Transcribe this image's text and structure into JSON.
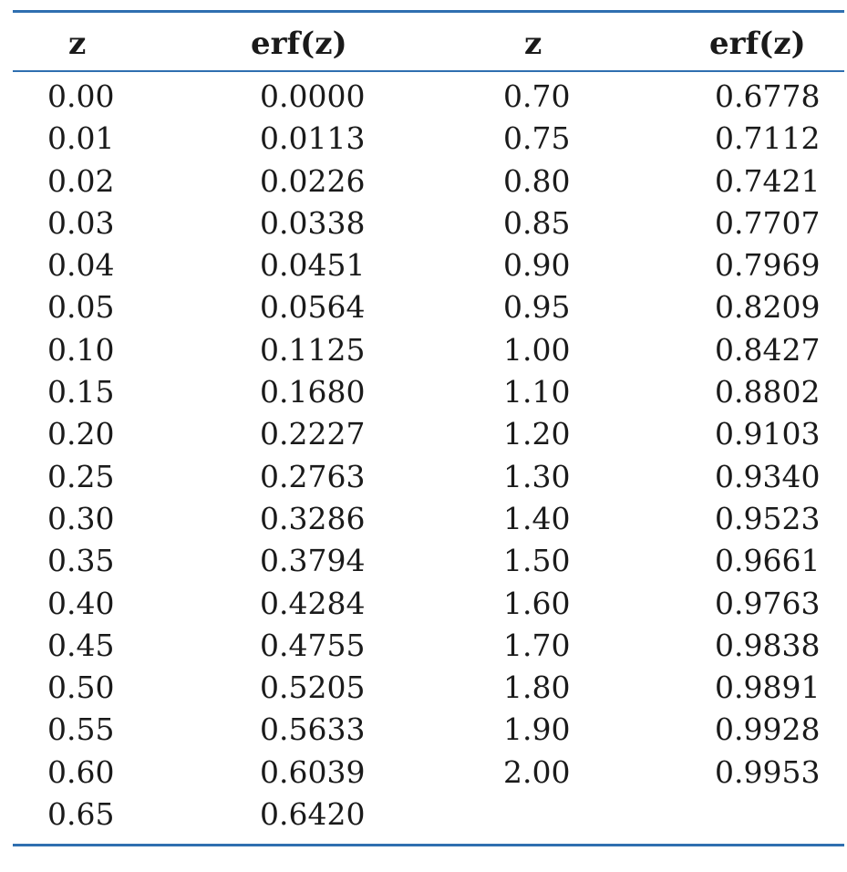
{
  "table": {
    "headers": [
      "z",
      "erf(z)",
      "z",
      "erf(z)"
    ],
    "left_rows": [
      {
        "z": "0.00",
        "erf": "0.0000"
      },
      {
        "z": "0.01",
        "erf": "0.0113"
      },
      {
        "z": "0.02",
        "erf": "0.0226"
      },
      {
        "z": "0.03",
        "erf": "0.0338"
      },
      {
        "z": "0.04",
        "erf": "0.0451"
      },
      {
        "z": "0.05",
        "erf": "0.0564"
      },
      {
        "z": "0.10",
        "erf": "0.1125"
      },
      {
        "z": "0.15",
        "erf": "0.1680"
      },
      {
        "z": "0.20",
        "erf": "0.2227"
      },
      {
        "z": "0.25",
        "erf": "0.2763"
      },
      {
        "z": "0.30",
        "erf": "0.3286"
      },
      {
        "z": "0.35",
        "erf": "0.3794"
      },
      {
        "z": "0.40",
        "erf": "0.4284"
      },
      {
        "z": "0.45",
        "erf": "0.4755"
      },
      {
        "z": "0.50",
        "erf": "0.5205"
      },
      {
        "z": "0.55",
        "erf": "0.5633"
      },
      {
        "z": "0.60",
        "erf": "0.6039"
      },
      {
        "z": "0.65",
        "erf": "0.6420"
      }
    ],
    "right_rows": [
      {
        "z": "0.70",
        "erf": "0.6778"
      },
      {
        "z": "0.75",
        "erf": "0.7112"
      },
      {
        "z": "0.80",
        "erf": "0.7421"
      },
      {
        "z": "0.85",
        "erf": "0.7707"
      },
      {
        "z": "0.90",
        "erf": "0.7969"
      },
      {
        "z": "0.95",
        "erf": "0.8209"
      },
      {
        "z": "1.00",
        "erf": "0.8427"
      },
      {
        "z": "1.10",
        "erf": "0.8802"
      },
      {
        "z": "1.20",
        "erf": "0.9103"
      },
      {
        "z": "1.30",
        "erf": "0.9340"
      },
      {
        "z": "1.40",
        "erf": "0.9523"
      },
      {
        "z": "1.50",
        "erf": "0.9661"
      },
      {
        "z": "1.60",
        "erf": "0.9763"
      },
      {
        "z": "1.70",
        "erf": "0.9838"
      },
      {
        "z": "1.80",
        "erf": "0.9891"
      },
      {
        "z": "1.90",
        "erf": "0.9928"
      },
      {
        "z": "2.00",
        "erf": "0.9953"
      }
    ]
  },
  "colors": {
    "rule": "#2f6fb0",
    "text": "#1a1a1a"
  }
}
